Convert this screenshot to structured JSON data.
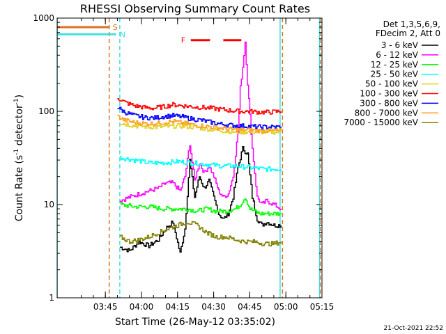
{
  "chart_data": {
    "type": "line",
    "title": "RHESSI Observing Summary Count Rates",
    "xlabel": "Start Time (26-May-12 03:35:02)",
    "ylabel": "Count Rate (s⁻¹ detector⁻¹)",
    "ylabel_parts": {
      "main": "Count Rate (s",
      "exp1": "-1",
      "mid": " detector",
      "exp2": "-1",
      "end": ")"
    },
    "y_scale": "log",
    "ylim": [
      1,
      1000
    ],
    "xlim_minutes": [
      -10.03,
      100.0
    ],
    "y_ticks": [
      1,
      10,
      100,
      1000
    ],
    "y_tick_labels": [
      "1",
      "10",
      "100",
      "1000"
    ],
    "x_tick_labels": [
      "03:45",
      "04:00",
      "04:15",
      "04:30",
      "04:45",
      "05:00",
      "05:15"
    ],
    "x_ticks_minutes": [
      10,
      25,
      40,
      55,
      70,
      85,
      100
    ],
    "legend_header": [
      "Det 1,3,5,6,9,",
      "FDecim 2, Att 0"
    ],
    "legend_placement": "right",
    "footer": "21-Oct-2021 22:52",
    "annotations": [
      {
        "label": "S",
        "color": "#e07020",
        "x_start_min": -10.0,
        "x_end_min": 11.6,
        "y": 800
      },
      {
        "label": "N",
        "color": "#40e0e0",
        "x_start_min": -10.0,
        "x_end_min": 14.5,
        "y": 670
      },
      {
        "label": "F",
        "color": "#ff0000",
        "segments": [
          [
            45.5,
            53.5
          ],
          [
            59.0,
            66.5
          ]
        ],
        "y": 580
      }
    ],
    "vertical_markers": [
      {
        "x_min": -10.0,
        "style": "solid",
        "color": "#40e0e0"
      },
      {
        "x_min": 11.6,
        "style": "dashed",
        "color": "#e07020"
      },
      {
        "x_min": 16.0,
        "style": "dashed",
        "color": "#40e0e0"
      },
      {
        "x_min": 82.6,
        "style": "solid",
        "color": "#40e0e0"
      },
      {
        "x_min": 83.6,
        "style": "dashed",
        "color": "#e07020"
      },
      {
        "x_min": 99.0,
        "style": "solid",
        "color": "#40e0e0"
      },
      {
        "x_min": 99.3,
        "style": "dashed",
        "color": "#e07020"
      }
    ],
    "series": [
      {
        "name": "3 - 6 keV",
        "color": "#000000",
        "x": [
          16,
          20,
          24,
          28,
          32,
          35,
          38,
          41,
          43,
          45,
          47,
          49,
          51,
          53,
          55,
          57,
          59,
          61,
          63,
          65,
          67,
          69,
          71,
          73,
          75,
          77,
          80,
          83
        ],
        "y": [
          3.5,
          3.2,
          4.0,
          3.6,
          4.2,
          5.5,
          6.5,
          3.0,
          5.5,
          30,
          12,
          20,
          15,
          18,
          12,
          8,
          7,
          8,
          12,
          25,
          40,
          35,
          12,
          7,
          6,
          6.5,
          6,
          6
        ]
      },
      {
        "name": "6 - 12 keV",
        "color": "#ff00ff",
        "x": [
          16,
          20,
          24,
          28,
          32,
          35,
          38,
          41,
          43,
          45,
          47,
          49,
          51,
          53,
          55,
          57,
          59,
          61,
          63,
          65,
          66,
          67,
          68,
          69,
          71,
          73,
          75,
          77,
          80,
          83
        ],
        "y": [
          11,
          12,
          13,
          14,
          15,
          17,
          17,
          14,
          20,
          45,
          18,
          28,
          22,
          26,
          20,
          14,
          12,
          13,
          20,
          60,
          180,
          300,
          560,
          200,
          40,
          12,
          10,
          11,
          10,
          9
        ]
      },
      {
        "name": "12 - 25 keV",
        "color": "#00ff00",
        "x": [
          16,
          22,
          28,
          34,
          40,
          44,
          48,
          52,
          56,
          60,
          64,
          66,
          68,
          70,
          74,
          78,
          83
        ],
        "y": [
          10,
          9.5,
          9.5,
          9,
          9,
          9,
          8.5,
          9,
          8.5,
          8.5,
          9,
          10,
          12,
          9,
          8,
          8,
          8
        ]
      },
      {
        "name": "25 - 50 keV",
        "color": "#00ffff",
        "x": [
          16,
          22,
          28,
          34,
          40,
          46,
          52,
          58,
          64,
          70,
          76,
          83
        ],
        "y": [
          32,
          30,
          28,
          28,
          29,
          28,
          27,
          26,
          26,
          25,
          24,
          24
        ]
      },
      {
        "name": "50 - 100 keV",
        "color": "#e0d020",
        "x": [
          16,
          22,
          28,
          34,
          40,
          46,
          52,
          58,
          64,
          70,
          76,
          83
        ],
        "y": [
          75,
          70,
          68,
          68,
          70,
          68,
          65,
          62,
          60,
          60,
          60,
          60
        ]
      },
      {
        "name": "100 - 300 keV",
        "color": "#ff0000",
        "x": [
          15,
          18,
          22,
          26,
          30,
          34,
          38,
          42,
          46,
          50,
          54,
          58,
          62,
          66,
          70,
          74,
          78,
          83
        ],
        "y": [
          140,
          125,
          115,
          110,
          108,
          112,
          118,
          115,
          112,
          110,
          108,
          105,
          102,
          100,
          100,
          98,
          98,
          100
        ]
      },
      {
        "name": "300 - 800 keV",
        "color": "#0000ff",
        "x": [
          15,
          18,
          22,
          26,
          30,
          34,
          38,
          42,
          46,
          50,
          54,
          58,
          62,
          66,
          70,
          74,
          78,
          83
        ],
        "y": [
          110,
          98,
          90,
          86,
          85,
          88,
          90,
          87,
          83,
          80,
          76,
          73,
          71,
          70,
          69,
          68,
          68,
          68
        ]
      },
      {
        "name": "800 - 7000 keV",
        "color": "#ffa020",
        "x": [
          15,
          18,
          22,
          26,
          30,
          34,
          38,
          42,
          46,
          50,
          54,
          58,
          62,
          66,
          70,
          74,
          78,
          83
        ],
        "y": [
          88,
          80,
          76,
          74,
          74,
          76,
          78,
          75,
          72,
          70,
          68,
          66,
          64,
          63,
          63,
          62,
          62,
          62
        ]
      },
      {
        "name": "7000 - 15000 keV",
        "color": "#808000",
        "x": [
          16,
          20,
          24,
          28,
          32,
          36,
          40,
          44,
          48,
          52,
          56,
          60,
          64,
          68,
          72,
          76,
          80,
          83
        ],
        "y": [
          4.5,
          4.0,
          4.2,
          4.5,
          5.0,
          5.5,
          6.0,
          6.5,
          6.0,
          5.0,
          4.5,
          4.5,
          4.2,
          4.0,
          4.0,
          3.8,
          3.8,
          4.0
        ]
      }
    ]
  }
}
